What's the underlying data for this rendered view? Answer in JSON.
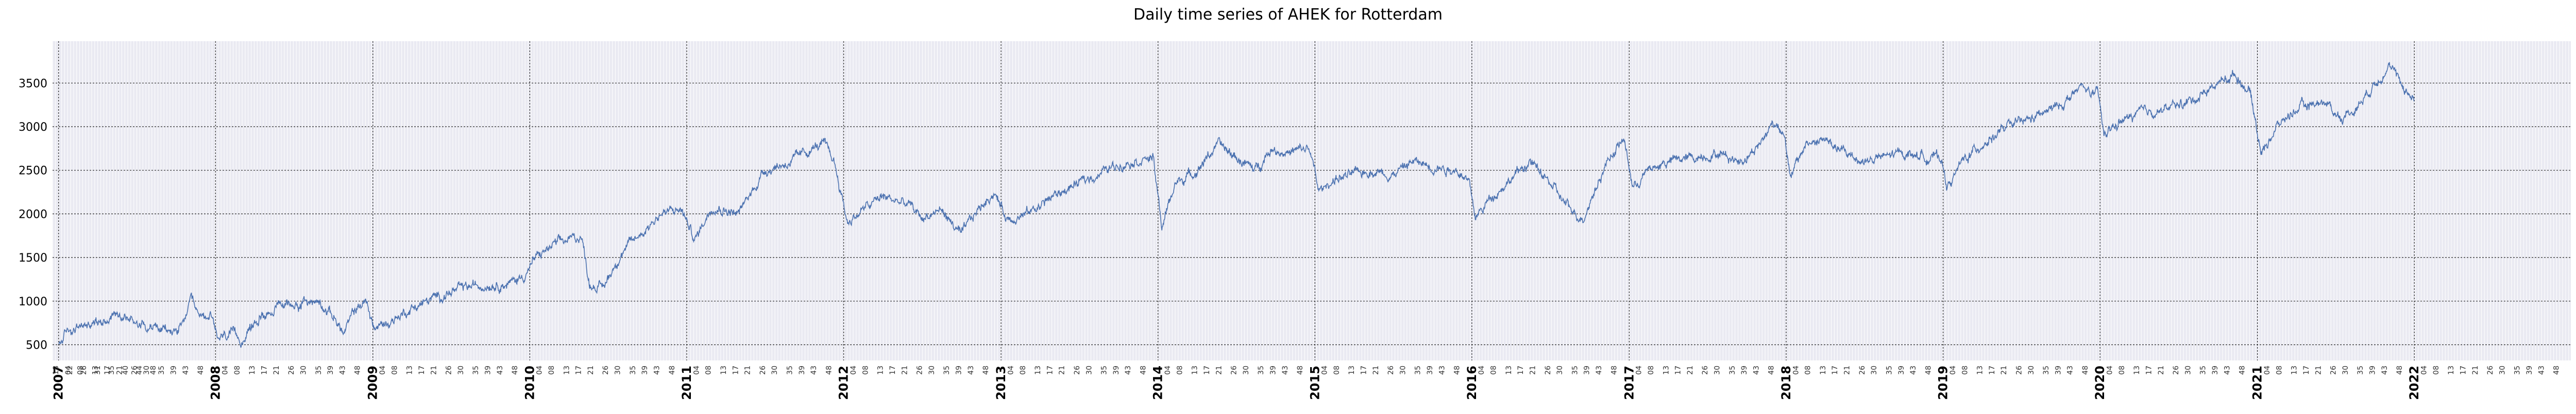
{
  "chart_data": {
    "type": "line",
    "title": "Daily time series of AHEK for Rotterdam",
    "xlabel": "",
    "ylabel": "",
    "x_range": [
      "2006-12-18",
      "2022-12-31"
    ],
    "ylim": [
      320,
      3980
    ],
    "y_ticks": [
      500,
      1000,
      1500,
      2000,
      2500,
      3000,
      3500
    ],
    "year_ticks": [
      "2007",
      "2008",
      "2009",
      "2010",
      "2011",
      "2012",
      "2013",
      "2014",
      "2015",
      "2016",
      "2017",
      "2018",
      "2019",
      "2020",
      "2021",
      "2022"
    ],
    "week_ticks": [
      "04",
      "08",
      "13",
      "17",
      "21",
      "26",
      "30",
      "35",
      "39",
      "43",
      "48"
    ],
    "pre_2007_week_ticks": [
      "18",
      "22",
      "26",
      "31",
      "35",
      "40",
      "44",
      "48"
    ],
    "grid": true,
    "legend": "none",
    "series": [
      {
        "color": "#4c72b0",
        "data_start": "2007-01-01",
        "data_end": "2021-12-31",
        "keypoints": [
          [
            "2007-01-01",
            480
          ],
          [
            "2007-01-20",
            650
          ],
          [
            "2007-03-01",
            720
          ],
          [
            "2007-04-20",
            800
          ],
          [
            "2007-05-20",
            880
          ],
          [
            "2007-06-20",
            780
          ],
          [
            "2007-08-01",
            720
          ],
          [
            "2007-09-20",
            640
          ],
          [
            "2007-10-15",
            700
          ],
          [
            "2007-11-05",
            1000
          ],
          [
            "2007-11-20",
            820
          ],
          [
            "2007-12-20",
            850
          ],
          [
            "2008-01-05",
            550
          ],
          [
            "2008-02-01",
            620
          ],
          [
            "2008-03-01",
            560
          ],
          [
            "2008-04-20",
            850
          ],
          [
            "2008-06-01",
            950
          ],
          [
            "2008-07-20",
            980
          ],
          [
            "2008-09-01",
            1000
          ],
          [
            "2008-10-05",
            800
          ],
          [
            "2008-10-25",
            620
          ],
          [
            "2008-11-20",
            900
          ],
          [
            "2008-12-15",
            1000
          ],
          [
            "2009-01-05",
            680
          ],
          [
            "2009-02-15",
            780
          ],
          [
            "2009-04-01",
            920
          ],
          [
            "2009-06-01",
            1050
          ],
          [
            "2009-08-01",
            1150
          ],
          [
            "2009-10-01",
            1200
          ],
          [
            "2009-11-15",
            1200
          ],
          [
            "2009-12-20",
            1300
          ],
          [
            "2010-01-15",
            1500
          ],
          [
            "2010-03-01",
            1650
          ],
          [
            "2010-05-01",
            1750
          ],
          [
            "2010-05-20",
            1200
          ],
          [
            "2010-06-20",
            1150
          ],
          [
            "2010-08-01",
            1550
          ],
          [
            "2010-09-01",
            1700
          ],
          [
            "2010-11-01",
            2000
          ],
          [
            "2010-12-20",
            2050
          ],
          [
            "2011-01-20",
            1700
          ],
          [
            "2011-03-01",
            2100
          ],
          [
            "2011-05-01",
            2000
          ],
          [
            "2011-07-01",
            2500
          ],
          [
            "2011-09-01",
            2600
          ],
          [
            "2011-10-20",
            2750
          ],
          [
            "2011-11-15",
            2800
          ],
          [
            "2011-12-10",
            2600
          ],
          [
            "2012-01-10",
            1900
          ],
          [
            "2012-02-15",
            2050
          ],
          [
            "2012-04-01",
            2200
          ],
          [
            "2012-06-01",
            2100
          ],
          [
            "2012-07-01",
            1950
          ],
          [
            "2012-08-15",
            2050
          ],
          [
            "2012-10-01",
            1750
          ],
          [
            "2012-11-01",
            2000
          ],
          [
            "2012-12-15",
            2250
          ],
          [
            "2013-01-15",
            1950
          ],
          [
            "2013-03-01",
            2000
          ],
          [
            "2013-05-01",
            2200
          ],
          [
            "2013-07-01",
            2350
          ],
          [
            "2013-09-01",
            2500
          ],
          [
            "2013-10-20",
            2600
          ],
          [
            "2013-12-20",
            2650
          ],
          [
            "2014-01-10",
            1850
          ],
          [
            "2014-02-10",
            2350
          ],
          [
            "2014-04-01",
            2500
          ],
          [
            "2014-05-20",
            2800
          ],
          [
            "2014-07-01",
            2650
          ],
          [
            "2014-08-15",
            2500
          ],
          [
            "2014-09-20",
            2750
          ],
          [
            "2014-11-01",
            2700
          ],
          [
            "2014-12-20",
            2750
          ],
          [
            "2015-01-10",
            2250
          ],
          [
            "2015-02-15",
            2400
          ],
          [
            "2015-04-01",
            2450
          ],
          [
            "2015-05-15",
            2500
          ],
          [
            "2015-07-01",
            2450
          ],
          [
            "2015-08-15",
            2600
          ],
          [
            "2015-10-01",
            2550
          ],
          [
            "2015-12-01",
            2500
          ],
          [
            "2015-12-25",
            2350
          ],
          [
            "2016-01-10",
            1950
          ],
          [
            "2016-02-15",
            2200
          ],
          [
            "2016-04-01",
            2400
          ],
          [
            "2016-05-15",
            2600
          ],
          [
            "2016-07-01",
            2350
          ],
          [
            "2016-08-15",
            2050
          ],
          [
            "2016-09-15",
            1950
          ],
          [
            "2016-10-15",
            2300
          ],
          [
            "2016-11-15",
            2650
          ],
          [
            "2016-12-20",
            2850
          ],
          [
            "2017-01-10",
            2300
          ],
          [
            "2017-02-15",
            2500
          ],
          [
            "2017-04-01",
            2600
          ],
          [
            "2017-06-01",
            2650
          ],
          [
            "2017-08-01",
            2700
          ],
          [
            "2017-09-15",
            2600
          ],
          [
            "2017-11-01",
            2800
          ],
          [
            "2017-12-01",
            3050
          ],
          [
            "2017-12-28",
            2950
          ],
          [
            "2018-01-10",
            2400
          ],
          [
            "2018-02-15",
            2800
          ],
          [
            "2018-04-01",
            2850
          ],
          [
            "2018-05-15",
            2700
          ],
          [
            "2018-07-01",
            2600
          ],
          [
            "2018-08-15",
            2650
          ],
          [
            "2018-10-01",
            2700
          ],
          [
            "2018-12-01",
            2650
          ],
          [
            "2018-12-28",
            2650
          ],
          [
            "2019-01-10",
            2300
          ],
          [
            "2019-02-15",
            2600
          ],
          [
            "2019-04-01",
            2800
          ],
          [
            "2019-06-01",
            3000
          ],
          [
            "2019-08-01",
            3100
          ],
          [
            "2019-10-01",
            3250
          ],
          [
            "2019-11-20",
            3450
          ],
          [
            "2019-12-28",
            3350
          ],
          [
            "2020-01-10",
            2900
          ],
          [
            "2020-02-15",
            3050
          ],
          [
            "2020-04-01",
            3150
          ],
          [
            "2020-06-01",
            3200
          ],
          [
            "2020-08-01",
            3300
          ],
          [
            "2020-10-01",
            3500
          ],
          [
            "2020-11-10",
            3600
          ],
          [
            "2020-12-15",
            3400
          ],
          [
            "2021-01-10",
            2700
          ],
          [
            "2021-02-15",
            3000
          ],
          [
            "2021-04-01",
            3200
          ],
          [
            "2021-06-01",
            3300
          ],
          [
            "2021-07-15",
            3100
          ],
          [
            "2021-08-15",
            3200
          ],
          [
            "2021-10-01",
            3500
          ],
          [
            "2021-11-01",
            3700
          ],
          [
            "2021-12-01",
            3500
          ],
          [
            "2021-12-31",
            3300
          ]
        ]
      }
    ]
  }
}
